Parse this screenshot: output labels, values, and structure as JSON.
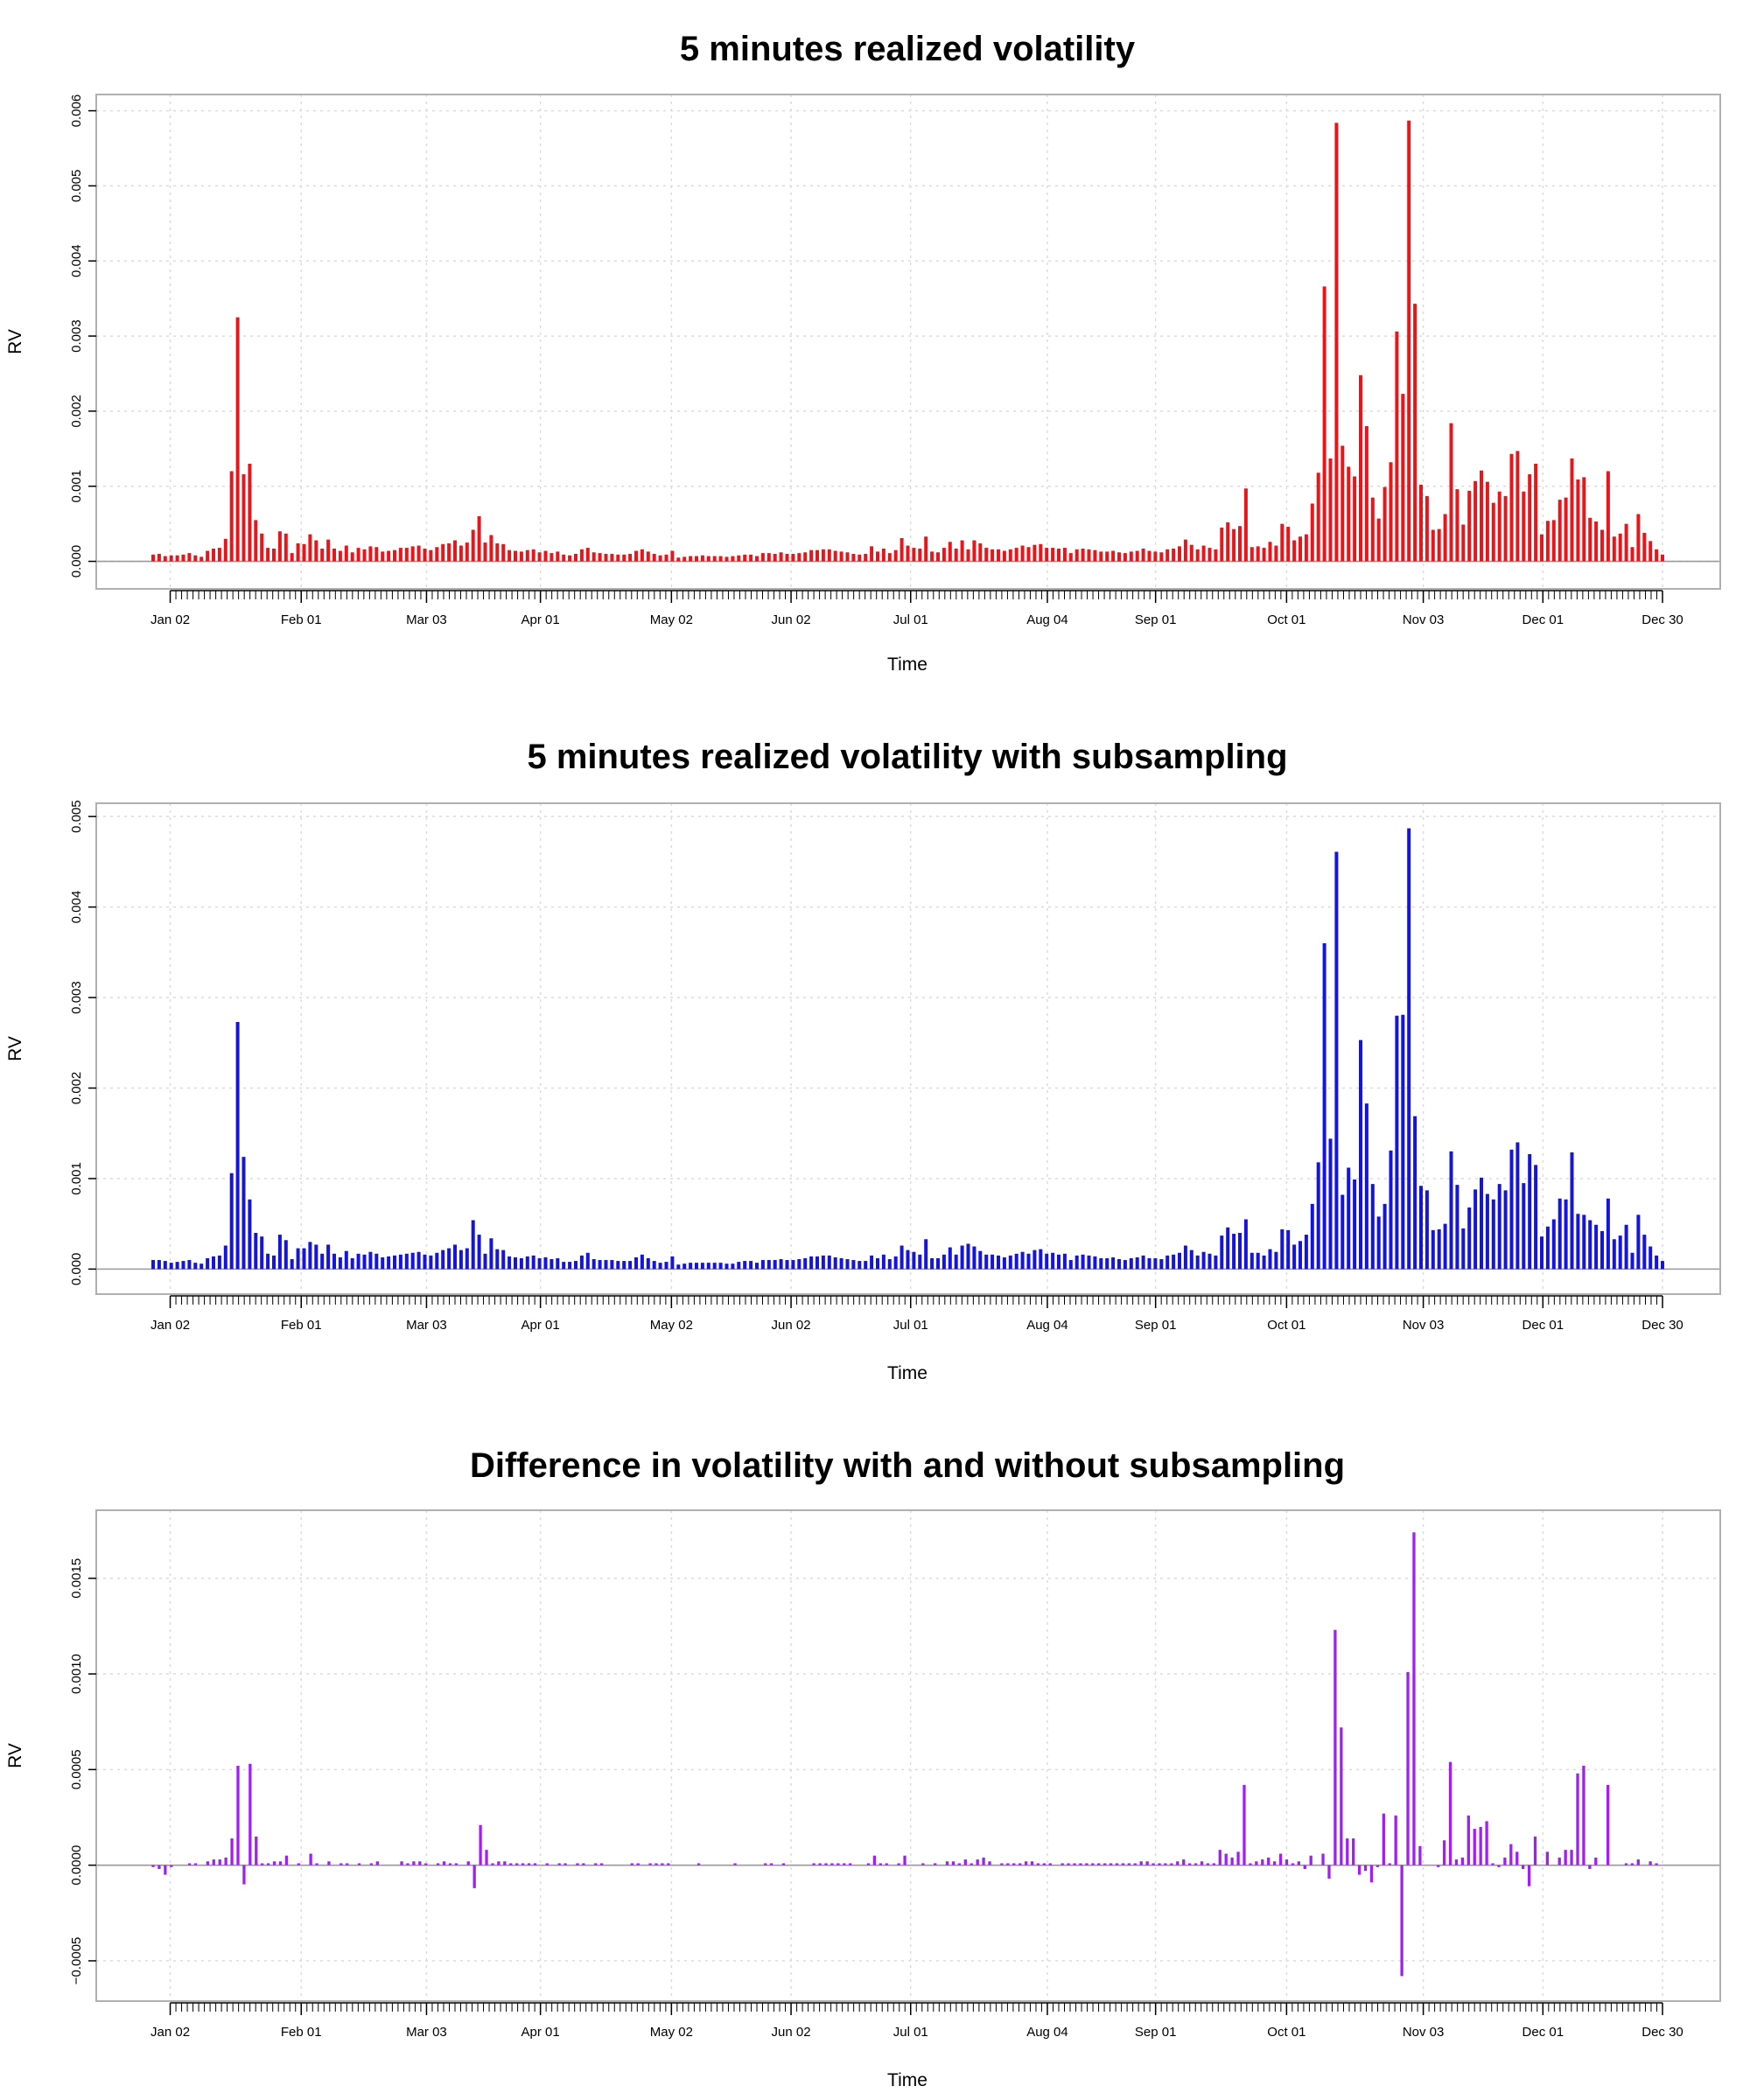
{
  "chart_data": [
    {
      "type": "bar",
      "title": "5 minutes realized volatility",
      "xlabel": "Time",
      "ylabel": "RV",
      "color": "#e8161b",
      "ylim": [
        -0.00025,
        0.0061
      ],
      "yticks": [
        0,
        0.001,
        0.002,
        0.003,
        0.004,
        0.005,
        0.006
      ],
      "ytick_labels": [
        "0.000",
        "0.001",
        "0.002",
        "0.003",
        "0.004",
        "0.005",
        "0.006"
      ],
      "xlim": [
        0,
        263
      ],
      "xticks": [
        3,
        26,
        48,
        68,
        91,
        112,
        133,
        157,
        176,
        199,
        223,
        244,
        265
      ],
      "xtick_labels": [
        "Jan 02",
        "Feb 01",
        "Mar 03",
        "Apr 01",
        "May 02",
        "Jun 02",
        "Jul 01",
        "Aug 04",
        "Sep 01",
        "Oct 01",
        "Nov 03",
        "Dec 01",
        "Dec 30"
      ],
      "grid": true,
      "values": [
        9e-05,
        0.0001,
        7e-05,
        8e-05,
        8e-05,
        9e-05,
        0.00011,
        8e-05,
        6e-05,
        0.00014,
        0.00017,
        0.00018,
        0.0003,
        0.0012,
        0.00325,
        0.00116,
        0.0013,
        0.00055,
        0.00037,
        0.00018,
        0.00017,
        0.0004,
        0.00037,
        0.00011,
        0.00024,
        0.00023,
        0.00036,
        0.00028,
        0.00017,
        0.00029,
        0.00017,
        0.00014,
        0.00021,
        0.00012,
        0.00018,
        0.00016,
        0.0002,
        0.00019,
        0.00013,
        0.00014,
        0.00015,
        0.00018,
        0.00018,
        0.0002,
        0.00021,
        0.00017,
        0.00015,
        0.00019,
        0.00023,
        0.00024,
        0.00028,
        0.00021,
        0.00025,
        0.00042,
        0.0006,
        0.00025,
        0.00035,
        0.00024,
        0.00023,
        0.00015,
        0.00014,
        0.00013,
        0.00015,
        0.00016,
        0.00012,
        0.00014,
        0.00011,
        0.00013,
        9e-05,
        8e-05,
        0.0001,
        0.00016,
        0.00018,
        0.00012,
        0.00011,
        0.0001,
        0.0001,
        9e-05,
        9e-05,
        0.0001,
        0.00014,
        0.00016,
        0.00013,
        0.0001,
        8e-05,
        9e-05,
        0.00014,
        5e-05,
        6e-05,
        7e-05,
        7e-05,
        8e-05,
        7e-05,
        7e-05,
        7e-05,
        6e-05,
        7e-05,
        8e-05,
        9e-05,
        9e-05,
        7e-05,
        0.00011,
        0.00011,
        0.0001,
        0.00012,
        0.0001,
        0.0001,
        0.00011,
        0.00012,
        0.00015,
        0.00015,
        0.00016,
        0.00016,
        0.00014,
        0.00013,
        0.00012,
        0.0001,
        9e-05,
        0.0001,
        0.0002,
        0.00013,
        0.00017,
        0.00011,
        0.00015,
        0.00031,
        0.00021,
        0.00018,
        0.00017,
        0.00033,
        0.00013,
        0.00012,
        0.00018,
        0.00026,
        0.00017,
        0.00028,
        0.00016,
        0.00028,
        0.00024,
        0.00018,
        0.00016,
        0.00016,
        0.00014,
        0.00016,
        0.00018,
        0.00021,
        0.00019,
        0.00022,
        0.00023,
        0.00018,
        0.00018,
        0.00017,
        0.00018,
        0.00011,
        0.00016,
        0.00017,
        0.00016,
        0.00015,
        0.00013,
        0.00013,
        0.00014,
        0.00012,
        0.00011,
        0.00013,
        0.00014,
        0.00017,
        0.00014,
        0.00013,
        0.00012,
        0.00016,
        0.00017,
        0.0002,
        0.00029,
        0.00022,
        0.00016,
        0.00021,
        0.00018,
        0.00016,
        0.00045,
        0.00052,
        0.00043,
        0.00047,
        0.00097,
        0.00019,
        0.0002,
        0.00018,
        0.00026,
        0.00021,
        0.0005,
        0.00046,
        0.00028,
        0.00033,
        0.00036,
        0.00077,
        0.00118,
        0.00366,
        0.00137,
        0.00584,
        0.00154,
        0.00126,
        0.00113,
        0.00248,
        0.0018,
        0.00085,
        0.00057,
        0.00099,
        0.00132,
        0.00306,
        0.00223,
        0.00587,
        0.00343,
        0.00102,
        0.00087,
        0.00042,
        0.00043,
        0.00063,
        0.00184,
        0.00096,
        0.00049,
        0.00094,
        0.00107,
        0.00121,
        0.00106,
        0.00078,
        0.00093,
        0.00087,
        0.00143,
        0.00147,
        0.00093,
        0.00116,
        0.0013,
        0.00036,
        0.00054,
        0.00055,
        0.00082,
        0.00085,
        0.00137,
        0.00109,
        0.00112,
        0.00058,
        0.00053,
        0.00042,
        0.0012,
        0.00033,
        0.00037,
        0.0005,
        0.00019,
        0.00063,
        0.00038,
        0.00027,
        0.00016,
        9e-05
      ]
    },
    {
      "type": "bar",
      "title": "5 minutes realized volatility with subsampling",
      "xlabel": "Time",
      "ylabel": "RV",
      "color": "#1414dc",
      "ylim": [
        -0.00018,
        0.00505
      ],
      "yticks": [
        0,
        0.001,
        0.002,
        0.003,
        0.004,
        0.005
      ],
      "ytick_labels": [
        "0.000",
        "0.001",
        "0.002",
        "0.003",
        "0.004",
        "0.005"
      ],
      "xlim": [
        0,
        263
      ],
      "xticks": [
        3,
        26,
        48,
        68,
        91,
        112,
        133,
        157,
        176,
        199,
        223,
        244,
        265
      ],
      "xtick_labels": [
        "Jan 02",
        "Feb 01",
        "Mar 03",
        "Apr 01",
        "May 02",
        "Jun 02",
        "Jul 01",
        "Aug 04",
        "Sep 01",
        "Oct 01",
        "Nov 03",
        "Dec 01",
        "Dec 30"
      ],
      "grid": true,
      "values": [
        0.0001,
        0.0001,
        9e-05,
        7e-05,
        8e-05,
        9e-05,
        0.0001,
        7e-05,
        6e-05,
        0.00012,
        0.00014,
        0.00015,
        0.00026,
        0.00106,
        0.00273,
        0.00124,
        0.00077,
        0.0004,
        0.00036,
        0.00017,
        0.00015,
        0.00038,
        0.00032,
        0.00011,
        0.00023,
        0.00023,
        0.0003,
        0.00027,
        0.00017,
        0.00027,
        0.00017,
        0.00013,
        0.0002,
        0.00012,
        0.00017,
        0.00016,
        0.00019,
        0.00017,
        0.00013,
        0.00014,
        0.00015,
        0.00016,
        0.00017,
        0.00018,
        0.00019,
        0.00016,
        0.00015,
        0.00018,
        0.00021,
        0.00023,
        0.00027,
        0.00021,
        0.00023,
        0.00054,
        0.00038,
        0.00017,
        0.00034,
        0.00022,
        0.00021,
        0.00014,
        0.00013,
        0.00012,
        0.00014,
        0.00015,
        0.00012,
        0.00013,
        0.00011,
        0.00012,
        8e-05,
        8e-05,
        9e-05,
        0.00015,
        0.00018,
        0.00011,
        0.0001,
        0.0001,
        0.0001,
        9e-05,
        9e-05,
        9e-05,
        0.00013,
        0.00016,
        0.00012,
        9e-05,
        7e-05,
        8e-05,
        0.00014,
        5e-05,
        6e-05,
        7e-05,
        7e-05,
        7e-05,
        7e-05,
        7e-05,
        7e-05,
        6e-05,
        6e-05,
        8e-05,
        9e-05,
        9e-05,
        7e-05,
        0.0001,
        0.0001,
        0.0001,
        0.00011,
        0.0001,
        0.0001,
        0.00011,
        0.00012,
        0.00014,
        0.00014,
        0.00015,
        0.00015,
        0.00013,
        0.00012,
        0.00011,
        0.0001,
        9e-05,
        9e-05,
        0.00015,
        0.00012,
        0.00016,
        0.00011,
        0.00014,
        0.00026,
        0.00021,
        0.00019,
        0.00016,
        0.00033,
        0.00012,
        0.00012,
        0.00016,
        0.00024,
        0.00016,
        0.00026,
        0.00028,
        0.00025,
        0.0002,
        0.00016,
        0.00016,
        0.00015,
        0.00013,
        0.00015,
        0.00017,
        0.00019,
        0.00017,
        0.00021,
        0.00022,
        0.00017,
        0.00018,
        0.00016,
        0.00017,
        0.0001,
        0.00015,
        0.00016,
        0.00015,
        0.00014,
        0.00012,
        0.00012,
        0.00013,
        0.00011,
        0.0001,
        0.00012,
        0.00013,
        0.00015,
        0.00012,
        0.00012,
        0.00011,
        0.00015,
        0.00016,
        0.00018,
        0.00026,
        0.00021,
        0.00015,
        0.00019,
        0.00017,
        0.00015,
        0.00037,
        0.00046,
        0.00039,
        0.0004,
        0.00055,
        0.00018,
        0.00018,
        0.00015,
        0.00022,
        0.00019,
        0.00044,
        0.00043,
        0.00027,
        0.00031,
        0.00038,
        0.00072,
        0.00118,
        0.0036,
        0.00144,
        0.00461,
        0.00082,
        0.00112,
        0.00099,
        0.00253,
        0.00183,
        0.00094,
        0.00058,
        0.00072,
        0.00131,
        0.0028,
        0.00281,
        0.00487,
        0.00169,
        0.00092,
        0.00087,
        0.00043,
        0.00044,
        0.0005,
        0.0013,
        0.00093,
        0.00045,
        0.00068,
        0.00088,
        0.00101,
        0.00083,
        0.00077,
        0.00094,
        0.00087,
        0.00132,
        0.0014,
        0.00095,
        0.00127,
        0.00115,
        0.00036,
        0.00047,
        0.00055,
        0.00078,
        0.00077,
        0.00129,
        0.00061,
        0.0006,
        0.00054,
        0.00049,
        0.00042,
        0.00078,
        0.00033,
        0.00037,
        0.00049,
        0.00018,
        0.0006,
        0.00038,
        0.00025,
        0.00015,
        9e-05
      ]
    },
    {
      "type": "bar",
      "title": "Difference in volatility with and without subsampling",
      "xlabel": "Time",
      "ylabel": "RV",
      "color": "#a020f0",
      "ylim": [
        -0.000665,
        0.00181
      ],
      "yticks": [
        -0.0005,
        0,
        0.0005,
        0.001,
        0.0015
      ],
      "ytick_labels": [
        "−0.0005",
        "0.0000",
        "0.0005",
        "0.0010",
        "0.0015"
      ],
      "xlim": [
        0,
        263
      ],
      "xticks": [
        3,
        26,
        48,
        68,
        91,
        112,
        133,
        157,
        176,
        199,
        223,
        244,
        265
      ],
      "xtick_labels": [
        "Jan 02",
        "Feb 01",
        "Mar 03",
        "Apr 01",
        "May 02",
        "Jun 02",
        "Jul 01",
        "Aug 04",
        "Sep 01",
        "Oct 01",
        "Nov 03",
        "Dec 01",
        "Dec 30"
      ],
      "grid": true,
      "values": [
        -1e-05,
        -2e-05,
        -5e-05,
        -1e-05,
        0,
        0,
        1e-05,
        1e-05,
        0,
        2e-05,
        3e-05,
        3e-05,
        4e-05,
        0.00014,
        0.00052,
        -0.0001,
        0.00053,
        0.00015,
        1e-05,
        1e-05,
        2e-05,
        2e-05,
        5e-05,
        0,
        1e-05,
        0,
        6e-05,
        1e-05,
        0,
        2e-05,
        0,
        1e-05,
        1e-05,
        0,
        1e-05,
        0,
        1e-05,
        2e-05,
        0,
        0,
        0,
        2e-05,
        1e-05,
        2e-05,
        2e-05,
        1e-05,
        0,
        1e-05,
        2e-05,
        1e-05,
        1e-05,
        0,
        2e-05,
        -0.00012,
        0.00021,
        8e-05,
        1e-05,
        2e-05,
        2e-05,
        1e-05,
        1e-05,
        1e-05,
        1e-05,
        1e-05,
        0,
        1e-05,
        0,
        1e-05,
        1e-05,
        0,
        1e-05,
        1e-05,
        0,
        1e-05,
        1e-05,
        0,
        0,
        0,
        0,
        1e-05,
        1e-05,
        0,
        1e-05,
        1e-05,
        1e-05,
        1e-05,
        0,
        0,
        0,
        0,
        1e-05,
        0,
        0,
        0,
        0,
        0,
        1e-05,
        0,
        0,
        0,
        0,
        1e-05,
        1e-05,
        0,
        1e-05,
        0,
        0,
        0,
        0,
        1e-05,
        1e-05,
        1e-05,
        1e-05,
        1e-05,
        1e-05,
        1e-05,
        0,
        0,
        1e-05,
        5e-05,
        1e-05,
        1e-05,
        0,
        1e-05,
        5e-05,
        0,
        0,
        1e-05,
        0,
        1e-05,
        0,
        2e-05,
        2e-05,
        1e-05,
        3e-05,
        1e-05,
        3e-05,
        4e-05,
        2e-05,
        0,
        1e-05,
        1e-05,
        1e-05,
        1e-05,
        2e-05,
        2e-05,
        1e-05,
        1e-05,
        1e-05,
        0,
        1e-05,
        1e-05,
        1e-05,
        1e-05,
        1e-05,
        1e-05,
        1e-05,
        1e-05,
        1e-05,
        1e-05,
        1e-05,
        1e-05,
        1e-05,
        2e-05,
        2e-05,
        1e-05,
        1e-05,
        1e-05,
        1e-05,
        2e-05,
        3e-05,
        1e-05,
        1e-05,
        2e-05,
        1e-05,
        1e-05,
        8e-05,
        6e-05,
        4e-05,
        7e-05,
        0.00042,
        1e-05,
        2e-05,
        3e-05,
        4e-05,
        2e-05,
        6e-05,
        3e-05,
        1e-05,
        2e-05,
        -2e-05,
        5e-05,
        0,
        6e-05,
        -7e-05,
        0.00123,
        0.00072,
        0.00014,
        0.00014,
        -5e-05,
        -3e-05,
        -9e-05,
        -1e-05,
        0.00027,
        1e-05,
        0.00026,
        -0.00058,
        0.00101,
        0.00174,
        0.0001,
        0,
        0,
        -1e-05,
        0.00013,
        0.00054,
        3e-05,
        4e-05,
        0.00026,
        0.00019,
        0.0002,
        0.00023,
        1e-05,
        -1e-05,
        4e-05,
        0.00011,
        7e-05,
        -2e-05,
        -0.00011,
        0.00015,
        0,
        7e-05,
        0,
        4e-05,
        8e-05,
        8e-05,
        0.00048,
        0.00052,
        -2e-05,
        4e-05,
        0,
        0.00042,
        0,
        0,
        1e-05,
        1e-05,
        3e-05,
        0,
        2e-05,
        1e-05,
        0
      ]
    }
  ]
}
